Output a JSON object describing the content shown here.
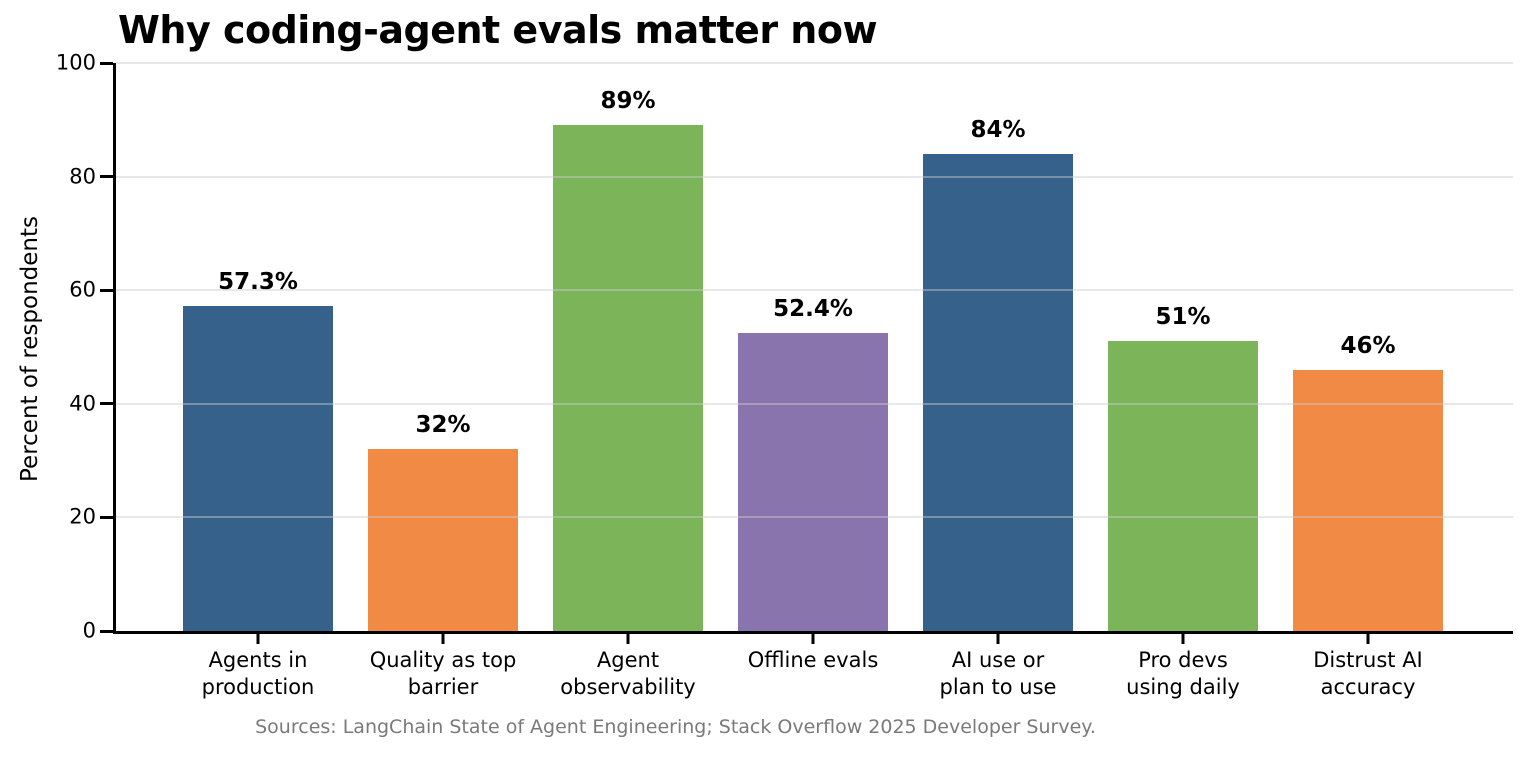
{
  "title": "Why coding-agent evals matter now",
  "chart_data": {
    "type": "bar",
    "title": "Why coding-agent evals matter now",
    "xlabel": "",
    "ylabel": "Percent of respondents",
    "ylim": [
      0,
      100
    ],
    "yticks": [
      0,
      20,
      40,
      60,
      80,
      100
    ],
    "grid": "horizontal-major",
    "legend": "none",
    "categories": [
      "Agents in\nproduction",
      "Quality as top\nbarrier",
      "Agent\nobservability",
      "Offline evals",
      "AI use or\nplan to use",
      "Pro devs\nusing daily",
      "Distrust AI\naccuracy"
    ],
    "values": [
      57.3,
      32,
      89,
      52.4,
      84,
      51,
      46
    ],
    "value_labels": [
      "57.3%",
      "32%",
      "89%",
      "52.4%",
      "84%",
      "51%",
      "46%"
    ],
    "bar_colors": [
      "#35618A",
      "#F08A45",
      "#7CB45A",
      "#8A74AD",
      "#35618A",
      "#7CB45A",
      "#F08A45"
    ],
    "source_note": "Sources: LangChain State of Agent Engineering; Stack Overflow 2025 Developer Survey."
  },
  "colors": {
    "blue": "#35618A",
    "orange": "#F08A45",
    "green": "#7CB45A",
    "purple": "#8A74AD",
    "axis": "#000000",
    "gridline": "#E7E7E7",
    "source_text": "#7A7A7A",
    "background": "#FFFFFF"
  }
}
